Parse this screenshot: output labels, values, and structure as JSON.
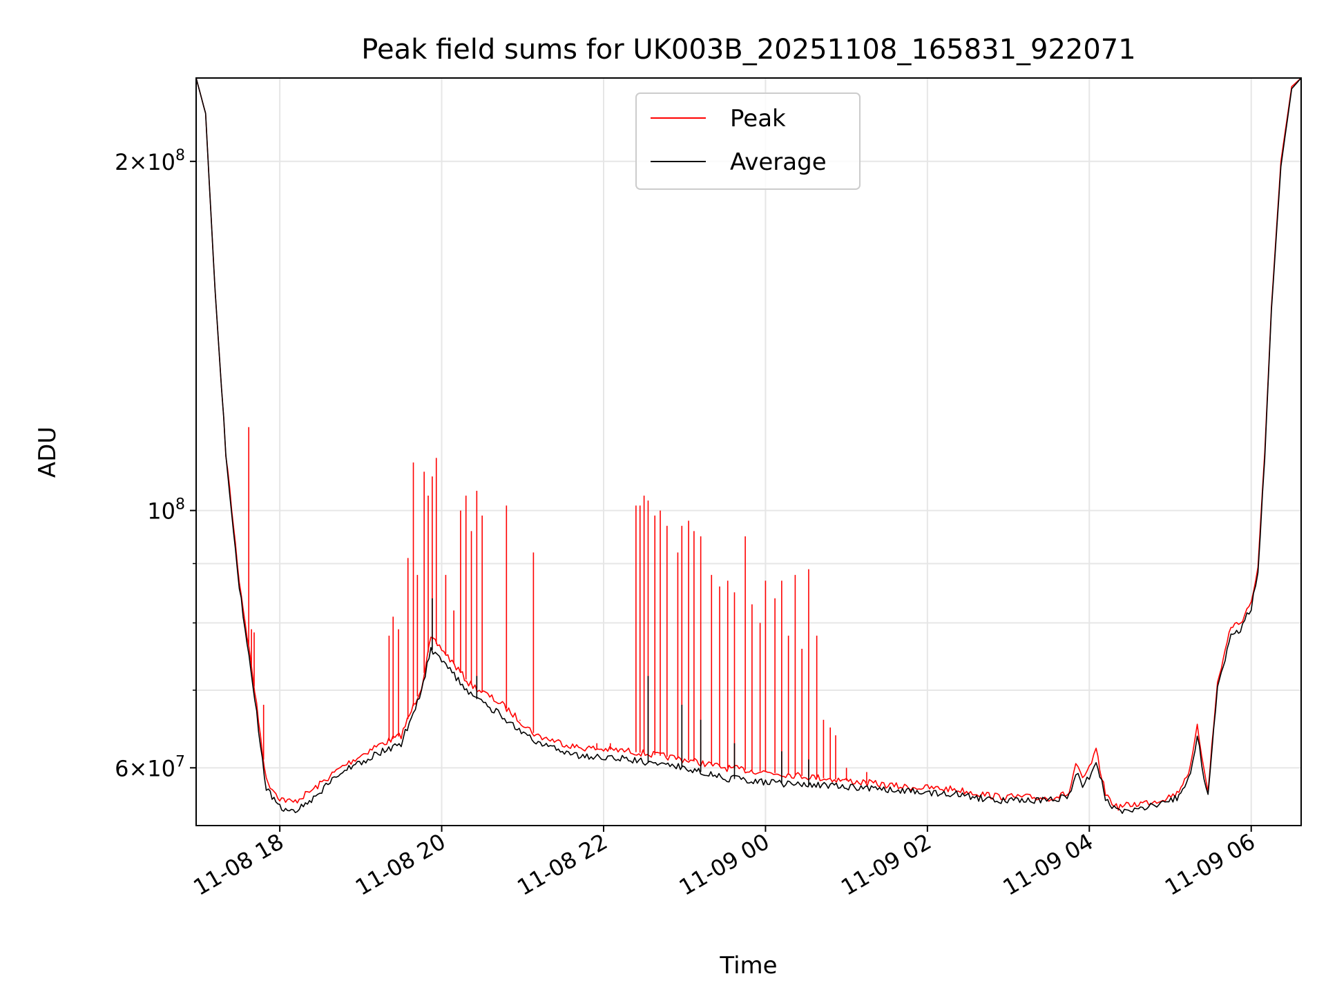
{
  "chart_data": {
    "type": "line",
    "title": "Peak field sums for UK003B_20251108_165831_922071",
    "xlabel": "Time",
    "ylabel": "ADU",
    "y_scale": "log",
    "ylim": [
      53500000,
      236000000
    ],
    "xlim": [
      "2025-11-08 16:58",
      "2025-11-09 06:37"
    ],
    "x_ticks": [
      {
        "x": "2025-11-08 18:00",
        "label": "11-08 18"
      },
      {
        "x": "2025-11-08 20:00",
        "label": "11-08 20"
      },
      {
        "x": "2025-11-08 22:00",
        "label": "11-08 22"
      },
      {
        "x": "2025-11-09 00:00",
        "label": "11-09 00"
      },
      {
        "x": "2025-11-09 02:00",
        "label": "11-09 02"
      },
      {
        "x": "2025-11-09 04:00",
        "label": "11-09 04"
      },
      {
        "x": "2025-11-09 06:00",
        "label": "11-09 06"
      }
    ],
    "y_major_ticks": [
      {
        "value": 60000000,
        "base": "6×10",
        "exp": "7"
      },
      {
        "value": 100000000,
        "base": "10",
        "exp": "8"
      },
      {
        "value": 200000000,
        "base": "2×10",
        "exp": "8"
      }
    ],
    "y_minor_ticks": [
      70000000,
      80000000,
      90000000
    ],
    "grid": true,
    "legend_position": "top-center",
    "series": [
      {
        "name": "Peak",
        "color": "#ff0000",
        "points": [
          [
            "2025-11-08 16:58",
            236000000
          ],
          [
            "2025-11-08 17:05",
            220000000
          ],
          [
            "2025-11-08 17:12",
            155000000
          ],
          [
            "2025-11-08 17:20",
            112000000
          ],
          [
            "2025-11-08 17:30",
            87000000
          ],
          [
            "2025-11-08 17:40",
            72000000
          ],
          [
            "2025-11-08 17:50",
            58500000
          ],
          [
            "2025-11-08 18:00",
            56500000
          ],
          [
            "2025-11-08 18:10",
            56000000
          ],
          [
            "2025-11-08 18:25",
            57500000
          ],
          [
            "2025-11-08 18:45",
            60000000
          ],
          [
            "2025-11-08 19:10",
            62500000
          ],
          [
            "2025-11-08 19:30",
            64000000
          ],
          [
            "2025-11-08 19:45",
            70500000
          ],
          [
            "2025-11-08 19:52",
            77500000
          ],
          [
            "2025-11-08 20:00",
            76000000
          ],
          [
            "2025-11-08 20:20",
            71000000
          ],
          [
            "2025-11-08 20:45",
            68000000
          ],
          [
            "2025-11-08 21:10",
            64000000
          ],
          [
            "2025-11-08 21:40",
            62500000
          ],
          [
            "2025-11-08 22:20",
            62000000
          ],
          [
            "2025-11-08 22:40",
            61500000
          ],
          [
            "2025-11-08 23:00",
            61000000
          ],
          [
            "2025-11-08 23:30",
            60000000
          ],
          [
            "2025-11-09 00:00",
            59500000
          ],
          [
            "2025-11-09 00:30",
            59000000
          ],
          [
            "2025-11-09 01:00",
            58500000
          ],
          [
            "2025-11-09 01:40",
            57800000
          ],
          [
            "2025-11-09 02:20",
            57500000
          ],
          [
            "2025-11-09 02:50",
            56700000
          ],
          [
            "2025-11-09 03:30",
            56500000
          ],
          [
            "2025-11-09 03:45",
            57000000
          ],
          [
            "2025-11-09 03:50",
            60500000
          ],
          [
            "2025-11-09 03:55",
            58500000
          ],
          [
            "2025-11-09 04:00",
            60000000
          ],
          [
            "2025-11-09 04:05",
            62000000
          ],
          [
            "2025-11-09 04:12",
            57000000
          ],
          [
            "2025-11-09 04:20",
            55500000
          ],
          [
            "2025-11-09 04:50",
            56200000
          ],
          [
            "2025-11-09 05:05",
            57000000
          ],
          [
            "2025-11-09 05:15",
            60000000
          ],
          [
            "2025-11-09 05:20",
            65000000
          ],
          [
            "2025-11-09 05:25",
            60000000
          ],
          [
            "2025-11-09 05:28",
            57500000
          ],
          [
            "2025-11-09 05:35",
            71000000
          ],
          [
            "2025-11-09 05:45",
            79500000
          ],
          [
            "2025-11-09 05:52",
            80000000
          ],
          [
            "2025-11-09 06:00",
            83500000
          ],
          [
            "2025-11-09 06:05",
            89000000
          ],
          [
            "2025-11-09 06:10",
            112000000
          ],
          [
            "2025-11-09 06:15",
            150000000
          ],
          [
            "2025-11-09 06:22",
            200000000
          ],
          [
            "2025-11-09 06:30",
            232000000
          ],
          [
            "2025-11-09 06:37",
            236000000
          ]
        ],
        "spikes": [
          [
            "2025-11-08 17:37",
            118000000
          ],
          [
            "2025-11-08 17:39",
            79000000
          ],
          [
            "2025-11-08 17:41",
            78500000
          ],
          [
            "2025-11-08 17:48",
            68000000
          ],
          [
            "2025-11-08 19:21",
            78000000
          ],
          [
            "2025-11-08 19:24",
            81000000
          ],
          [
            "2025-11-08 19:28",
            79000000
          ],
          [
            "2025-11-08 19:35",
            91000000
          ],
          [
            "2025-11-08 19:39",
            110000000
          ],
          [
            "2025-11-08 19:42",
            88000000
          ],
          [
            "2025-11-08 19:47",
            108000000
          ],
          [
            "2025-11-08 19:50",
            103000000
          ],
          [
            "2025-11-08 19:53",
            107000000
          ],
          [
            "2025-11-08 19:56",
            111000000
          ],
          [
            "2025-11-08 20:03",
            88000000
          ],
          [
            "2025-11-08 20:09",
            82000000
          ],
          [
            "2025-11-08 20:14",
            100000000
          ],
          [
            "2025-11-08 20:18",
            103000000
          ],
          [
            "2025-11-08 20:22",
            96000000
          ],
          [
            "2025-11-08 20:26",
            104000000
          ],
          [
            "2025-11-08 20:30",
            99000000
          ],
          [
            "2025-11-08 20:48",
            101000000
          ],
          [
            "2025-11-08 21:08",
            92000000
          ],
          [
            "2025-11-08 22:24",
            101000000
          ],
          [
            "2025-11-08 22:27",
            101000000
          ],
          [
            "2025-11-08 22:30",
            103000000
          ],
          [
            "2025-11-08 22:33",
            102000000
          ],
          [
            "2025-11-08 22:38",
            99000000
          ],
          [
            "2025-11-08 22:42",
            100000000
          ],
          [
            "2025-11-08 22:47",
            97000000
          ],
          [
            "2025-11-08 22:55",
            92000000
          ],
          [
            "2025-11-08 22:58",
            97000000
          ],
          [
            "2025-11-08 23:03",
            98000000
          ],
          [
            "2025-11-08 23:07",
            96000000
          ],
          [
            "2025-11-08 23:12",
            95000000
          ],
          [
            "2025-11-08 23:20",
            88000000
          ],
          [
            "2025-11-08 23:26",
            86000000
          ],
          [
            "2025-11-08 23:32",
            87000000
          ],
          [
            "2025-11-08 23:37",
            85000000
          ],
          [
            "2025-11-08 23:45",
            95000000
          ],
          [
            "2025-11-08 23:50",
            83000000
          ],
          [
            "2025-11-08 23:56",
            80000000
          ],
          [
            "2025-11-09 00:00",
            87000000
          ],
          [
            "2025-11-09 00:07",
            84000000
          ],
          [
            "2025-11-09 00:12",
            87000000
          ],
          [
            "2025-11-09 00:17",
            78000000
          ],
          [
            "2025-11-09 00:22",
            88000000
          ],
          [
            "2025-11-09 00:27",
            76000000
          ],
          [
            "2025-11-09 00:32",
            89000000
          ],
          [
            "2025-11-09 00:38",
            78000000
          ],
          [
            "2025-11-09 00:43",
            66000000
          ],
          [
            "2025-11-09 00:48",
            65000000
          ],
          [
            "2025-11-09 00:52",
            64000000
          ],
          [
            "2025-11-09 01:00",
            60000000
          ],
          [
            "2025-11-09 01:15",
            59500000
          ],
          [
            "2025-11-08 20:58",
            66000000
          ],
          [
            "2025-11-08 21:55",
            63000000
          ],
          [
            "2025-11-08 22:05",
            63000000
          ]
        ]
      },
      {
        "name": "Average",
        "color": "#000000",
        "points": [
          [
            "2025-11-08 16:58",
            236000000
          ],
          [
            "2025-11-08 17:05",
            220000000
          ],
          [
            "2025-11-08 17:12",
            155000000
          ],
          [
            "2025-11-08 17:20",
            112000000
          ],
          [
            "2025-11-08 17:30",
            86000000
          ],
          [
            "2025-11-08 17:40",
            71000000
          ],
          [
            "2025-11-08 17:50",
            57500000
          ],
          [
            "2025-11-08 18:00",
            55500000
          ],
          [
            "2025-11-08 18:10",
            55000000
          ],
          [
            "2025-11-08 18:25",
            56500000
          ],
          [
            "2025-11-08 18:45",
            59500000
          ],
          [
            "2025-11-08 19:10",
            61500000
          ],
          [
            "2025-11-08 19:30",
            63000000
          ],
          [
            "2025-11-08 19:45",
            70000000
          ],
          [
            "2025-11-08 19:52",
            76000000
          ],
          [
            "2025-11-08 20:00",
            74500000
          ],
          [
            "2025-11-08 20:20",
            69500000
          ],
          [
            "2025-11-08 20:45",
            66500000
          ],
          [
            "2025-11-08 21:10",
            63000000
          ],
          [
            "2025-11-08 21:40",
            61500000
          ],
          [
            "2025-11-08 22:20",
            61000000
          ],
          [
            "2025-11-08 22:40",
            60500000
          ],
          [
            "2025-11-08 23:00",
            60000000
          ],
          [
            "2025-11-08 23:30",
            58800000
          ],
          [
            "2025-11-09 00:00",
            58300000
          ],
          [
            "2025-11-09 00:30",
            58000000
          ],
          [
            "2025-11-09 01:00",
            57800000
          ],
          [
            "2025-11-09 01:40",
            57300000
          ],
          [
            "2025-11-09 02:20",
            57000000
          ],
          [
            "2025-11-09 02:50",
            56200000
          ],
          [
            "2025-11-09 03:30",
            56200000
          ],
          [
            "2025-11-09 03:45",
            56700000
          ],
          [
            "2025-11-09 03:50",
            59500000
          ],
          [
            "2025-11-09 03:55",
            58000000
          ],
          [
            "2025-11-09 04:00",
            59000000
          ],
          [
            "2025-11-09 04:05",
            61000000
          ],
          [
            "2025-11-09 04:12",
            56500000
          ],
          [
            "2025-11-09 04:20",
            55000000
          ],
          [
            "2025-11-09 04:50",
            55800000
          ],
          [
            "2025-11-09 05:05",
            56500000
          ],
          [
            "2025-11-09 05:15",
            59000000
          ],
          [
            "2025-11-09 05:20",
            64000000
          ],
          [
            "2025-11-09 05:25",
            59000000
          ],
          [
            "2025-11-09 05:28",
            57000000
          ],
          [
            "2025-11-09 05:35",
            70000000
          ],
          [
            "2025-11-09 05:45",
            78500000
          ],
          [
            "2025-11-09 05:52",
            79000000
          ],
          [
            "2025-11-09 06:00",
            82500000
          ],
          [
            "2025-11-09 06:05",
            88000000
          ],
          [
            "2025-11-09 06:10",
            111000000
          ],
          [
            "2025-11-09 06:15",
            149000000
          ],
          [
            "2025-11-09 06:22",
            198000000
          ],
          [
            "2025-11-09 06:30",
            231000000
          ],
          [
            "2025-11-09 06:37",
            236000000
          ]
        ],
        "spikes": [
          [
            "2025-11-08 19:53",
            84000000
          ],
          [
            "2025-11-08 20:26",
            72000000
          ],
          [
            "2025-11-08 22:33",
            72000000
          ],
          [
            "2025-11-08 22:58",
            68000000
          ],
          [
            "2025-11-08 23:12",
            66000000
          ],
          [
            "2025-11-08 23:37",
            63000000
          ],
          [
            "2025-11-09 00:12",
            62000000
          ],
          [
            "2025-11-09 00:32",
            61000000
          ]
        ]
      }
    ]
  }
}
